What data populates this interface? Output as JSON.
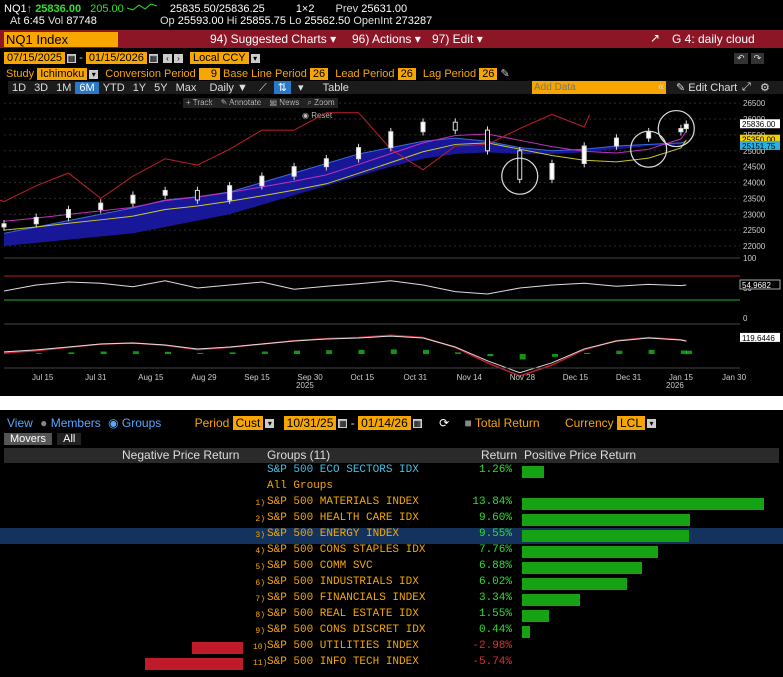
{
  "quote": {
    "ticker": "NQ1",
    "arrow": "↑",
    "last": "25836.00",
    "change": "205.00",
    "bid_ask": "25835.50/25836.25",
    "size": "1×2",
    "prev_label": "Prev",
    "prev": "25631.00",
    "at_label": "At",
    "time": "6:45",
    "vol_label": "Vol",
    "vol": "87748",
    "op_label": "Op",
    "open": "25593.00",
    "hi_label": "Hi",
    "high": "25855.75",
    "lo_label": "Lo",
    "low": "25562.50",
    "oi_label": "OpenInt",
    "oi": "273287"
  },
  "titlebar": {
    "security": "NQ1 Index",
    "suggested": "94) Suggested Charts",
    "actions": "96) Actions",
    "edit": "97) Edit",
    "graph": "G 4: daily cloud"
  },
  "params": {
    "date_from": "07/15/2025",
    "date_to": "01/15/2026",
    "currency": "Local CCY",
    "study_label": "Study",
    "study": "Ichimoku",
    "conv_label": "Conversion Period",
    "conv": "9",
    "base_label": "Base Line Period",
    "base": "26",
    "lead_label": "Lead Period",
    "lead": "26",
    "lag_label": "Lag Period",
    "lag": "26"
  },
  "toolbar": {
    "ranges": [
      "1D",
      "3D",
      "1M",
      "6M",
      "YTD",
      "1Y",
      "5Y",
      "Max"
    ],
    "selected": "6M",
    "freq": "Daily",
    "table": "Table",
    "add_data_placeholder": "Add Data",
    "edit_chart": "Edit Chart"
  },
  "chart_tools": {
    "track": "Track",
    "annotate": "Annotate",
    "news": "News",
    "zoom": "Zoom",
    "reset": "Reset"
  },
  "chart_data": {
    "type": "line",
    "x_ticks": [
      "Jul 15",
      "Jul 31",
      "Aug 15",
      "Aug 29",
      "Sep 15",
      "Sep 30",
      "Oct 15",
      "Oct 31",
      "Nov 14",
      "Nov 28",
      "Dec 15",
      "Dec 31",
      "Jan 15",
      "Jan 30"
    ],
    "year_labels": [
      "2025",
      "2026"
    ],
    "price_ylim": [
      22000,
      26600
    ],
    "price_yticks": [
      "26500",
      "26000",
      "25500",
      "25000",
      "24500",
      "24000",
      "23500",
      "23000",
      "22500",
      "22000"
    ],
    "price_labels": [
      "25836.00",
      "25350.00",
      "25151.75"
    ],
    "price_x": [
      0,
      6,
      12,
      18,
      24,
      30,
      36,
      42,
      48,
      54,
      60,
      66,
      72,
      78,
      84,
      90,
      96,
      102,
      108,
      114,
      120,
      126,
      127
    ],
    "price_close": [
      22700,
      22900,
      23150,
      23350,
      23600,
      23750,
      23450,
      23900,
      24200,
      24500,
      24750,
      25100,
      25600,
      25900,
      25650,
      25000,
      24100,
      24600,
      25150,
      25400,
      25600,
      25700,
      25836
    ],
    "cloud_upper": [
      22400,
      22600,
      22800,
      23000,
      23200,
      23450,
      23550,
      23700,
      24000,
      24300,
      24600,
      24900,
      25100,
      25300,
      25400,
      25300,
      25100,
      25000,
      25050,
      25150,
      25200,
      25250,
      25300
    ],
    "cloud_lower": [
      22000,
      22100,
      22200,
      22300,
      22400,
      22600,
      22800,
      23000,
      23300,
      23600,
      23900,
      24200,
      24500,
      24750,
      24900,
      24950,
      24900,
      24900,
      24950,
      25050,
      25150,
      25200,
      25250
    ],
    "rsi_ylim": [
      0,
      100
    ],
    "rsi_yticks": [
      "100",
      "50",
      "0"
    ],
    "rsi_last": "54.9682",
    "rsi": [
      45,
      55,
      60,
      58,
      52,
      62,
      50,
      55,
      60,
      48,
      53,
      57,
      62,
      55,
      44,
      40,
      50,
      55,
      58,
      53,
      56,
      54,
      55
    ],
    "macd_last": "119.6446",
    "macd": [
      10,
      30,
      60,
      90,
      100,
      80,
      40,
      60,
      90,
      120,
      140,
      150,
      170,
      150,
      60,
      -80,
      -200,
      -100,
      40,
      120,
      150,
      130,
      119
    ]
  },
  "movers": {
    "view_label": "View",
    "members": "Members",
    "groups": "Groups",
    "period_label": "Period",
    "period": "Cust",
    "from": "10/31/25",
    "to": "01/14/26",
    "total_return": "Total Return",
    "currency_label": "Currency",
    "currency": "LCL",
    "tabs": [
      "Movers",
      "All"
    ],
    "neg_header": "Negative Price Return",
    "groups_header": "Groups (11)",
    "return_header": "Return",
    "pos_header": "Positive Price Return",
    "benchmark": {
      "name": "S&P 500 ECO SECTORS IDX",
      "ret": "1.26%",
      "value": 1.26
    },
    "all_groups": "All Groups",
    "rows": [
      {
        "n": "1)",
        "name": "S&P 500 MATERIALS INDEX",
        "ret": "13.84%",
        "value": 13.84
      },
      {
        "n": "2)",
        "name": "S&P 500 HEALTH CARE IDX",
        "ret": "9.60%",
        "value": 9.6
      },
      {
        "n": "3)",
        "name": "S&P 500 ENERGY INDEX",
        "ret": "9.55%",
        "value": 9.55
      },
      {
        "n": "4)",
        "name": "S&P 500 CONS STAPLES IDX",
        "ret": "7.76%",
        "value": 7.76
      },
      {
        "n": "5)",
        "name": "S&P 500 COMM SVC",
        "ret": "6.88%",
        "value": 6.88
      },
      {
        "n": "6)",
        "name": "S&P 500 INDUSTRIALS IDX",
        "ret": "6.02%",
        "value": 6.02
      },
      {
        "n": "7)",
        "name": "S&P 500 FINANCIALS INDEX",
        "ret": "3.34%",
        "value": 3.34
      },
      {
        "n": "8)",
        "name": "S&P 500 REAL ESTATE IDX",
        "ret": "1.55%",
        "value": 1.55
      },
      {
        "n": "9)",
        "name": "S&P 500 CONS DISCRET IDX",
        "ret": "0.44%",
        "value": 0.44
      },
      {
        "n": "10)",
        "name": "S&P 500 UTILITIES INDEX",
        "ret": "-2.98%",
        "value": -2.98
      },
      {
        "n": "11)",
        "name": "S&P 500 INFO TECH INDEX",
        "ret": "-5.74%",
        "value": -5.74
      }
    ]
  }
}
